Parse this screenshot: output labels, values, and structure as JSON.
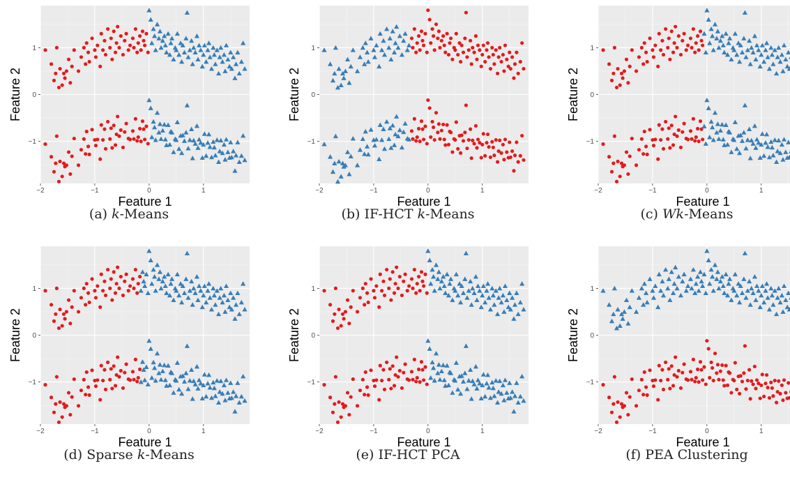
{
  "colors": {
    "cluster_red": "#e41a1c",
    "cluster_blue": "#377eb8",
    "panel_bg": "#ebebeb",
    "grid": "#ffffff"
  },
  "chart_data": [
    {
      "type": "scatter",
      "caption": "(a) k-Means",
      "caption_parts": {
        "prefix": "(a) ",
        "italic": "k",
        "suffix": "-Means"
      },
      "xlabel": "Feature 1",
      "ylabel": "Feature 2",
      "xlim": [
        -2.0,
        1.85
      ],
      "ylim": [
        -1.9,
        1.9
      ],
      "xticks": [
        -2,
        -1,
        0,
        1
      ],
      "yticks": [
        -1,
        0,
        1
      ],
      "tick_labels_x": [
        "−2",
        "−1",
        "0",
        "1"
      ],
      "tick_labels_y": [
        "−1",
        "0",
        "1"
      ],
      "assignment": "x_split",
      "split": 0.0,
      "left_shape": "circle",
      "left_color": "#e41a1c",
      "right_shape": "triangle",
      "right_color": "#377eb8"
    },
    {
      "type": "scatter",
      "caption": "(b) IF-HCT k-Means",
      "caption_parts": {
        "prefix": "(b) IF-HCT ",
        "italic": "k",
        "suffix": "-Means"
      },
      "xlabel": "Feature 1",
      "ylabel": "Feature 2",
      "xlim": [
        -2.0,
        1.85
      ],
      "ylim": [
        -1.9,
        1.9
      ],
      "xticks": [
        -2,
        -1,
        0,
        1
      ],
      "yticks": [
        -1,
        0,
        1
      ],
      "tick_labels_x": [
        "−2",
        "−1",
        "0",
        "1"
      ],
      "tick_labels_y": [
        "−1",
        "0",
        "1"
      ],
      "assignment": "x_split",
      "split": -0.3,
      "left_shape": "triangle",
      "left_color": "#377eb8",
      "right_shape": "circle",
      "right_color": "#e41a1c"
    },
    {
      "type": "scatter",
      "caption": "(c) Wk-Means",
      "caption_parts": {
        "prefix": "(c) ",
        "italic": "Wk",
        "suffix": "-Means"
      },
      "xlabel": "Feature 1",
      "ylabel": "Feature 2",
      "xlim": [
        -2.0,
        1.85
      ],
      "ylim": [
        -1.9,
        1.9
      ],
      "xticks": [
        -2,
        -1,
        0,
        1
      ],
      "yticks": [
        -1,
        0,
        1
      ],
      "tick_labels_x": [
        "−2",
        "−1",
        "0",
        "1"
      ],
      "tick_labels_y": [
        "−1",
        "0",
        "1"
      ],
      "assignment": "x_split",
      "split": -0.05,
      "left_shape": "circle",
      "left_color": "#e41a1c",
      "right_shape": "triangle",
      "right_color": "#377eb8"
    },
    {
      "type": "scatter",
      "caption": "(d) Sparse k-Means",
      "caption_parts": {
        "prefix": "(d) Sparse ",
        "italic": "k",
        "suffix": "-Means"
      },
      "xlabel": "Feature 1",
      "ylabel": "Feature 2",
      "xlim": [
        -2.0,
        1.85
      ],
      "ylim": [
        -1.9,
        1.9
      ],
      "xticks": [
        -2,
        -1,
        0,
        1
      ],
      "yticks": [
        -1,
        0,
        1
      ],
      "tick_labels_x": [
        "−2",
        "−1",
        "0",
        "1"
      ],
      "tick_labels_y": [
        "−1",
        "0",
        "1"
      ],
      "assignment": "x_split",
      "split": -0.15,
      "left_shape": "circle",
      "left_color": "#e41a1c",
      "right_shape": "triangle",
      "right_color": "#377eb8"
    },
    {
      "type": "scatter",
      "caption": "(e) IF-HCT PCA",
      "caption_parts": {
        "prefix": "(e) IF-HCT PCA",
        "italic": "",
        "suffix": ""
      },
      "xlabel": "Feature 1",
      "ylabel": "Feature 2",
      "xlim": [
        -2.0,
        1.85
      ],
      "ylim": [
        -1.9,
        1.9
      ],
      "xticks": [
        -2,
        -1,
        0,
        1
      ],
      "yticks": [
        -1,
        0,
        1
      ],
      "tick_labels_x": [
        "−2",
        "−1",
        "0",
        "1"
      ],
      "tick_labels_y": [
        "−1",
        "0",
        "1"
      ],
      "assignment": "x_split",
      "split": 0.0,
      "left_shape": "circle",
      "left_color": "#e41a1c",
      "right_shape": "triangle",
      "right_color": "#377eb8"
    },
    {
      "type": "scatter",
      "caption": "(f) PEA Clustering",
      "caption_parts": {
        "prefix": "(f) PEA Clustering",
        "italic": "",
        "suffix": ""
      },
      "xlabel": "Feature 1",
      "ylabel": "Feature 2",
      "xlim": [
        -2.0,
        1.85
      ],
      "ylim": [
        -1.9,
        1.9
      ],
      "xticks": [
        -2,
        -1,
        0,
        1
      ],
      "yticks": [
        -1,
        0,
        1
      ],
      "tick_labels_x": [
        "−2",
        "−1",
        "0",
        "1"
      ],
      "tick_labels_y": [
        "−1",
        "0",
        "1"
      ],
      "assignment": "y_split",
      "split": 0.0,
      "top_shape": "triangle",
      "top_color": "#377eb8",
      "bottom_shape": "circle",
      "bottom_color": "#e41a1c"
    }
  ],
  "points": {
    "x": [
      -1.91,
      -1.8,
      -1.75,
      -1.72,
      -1.7,
      -1.66,
      -1.64,
      -1.6,
      -1.57,
      -1.55,
      -1.52,
      -1.48,
      -1.45,
      -1.42,
      -1.38,
      -1.3,
      -1.25,
      -1.2,
      -1.17,
      -1.15,
      -1.12,
      -1.1,
      -1.05,
      -1.0,
      -0.98,
      -0.95,
      -0.9,
      -0.88,
      -0.85,
      -0.82,
      -0.8,
      -0.76,
      -0.72,
      -0.7,
      -0.68,
      -0.65,
      -0.62,
      -0.6,
      -0.58,
      -0.55,
      -0.52,
      -0.48,
      -0.45,
      -0.42,
      -0.38,
      -0.35,
      -0.3,
      -0.28,
      -0.25,
      -0.22,
      -0.2,
      -0.17,
      -0.15,
      -0.12,
      -0.1,
      -0.08,
      -0.05,
      -0.02,
      0.0,
      0.03,
      0.05,
      0.08,
      0.1,
      0.12,
      0.15,
      0.18,
      0.2,
      0.22,
      0.25,
      0.28,
      0.3,
      0.32,
      0.35,
      0.38,
      0.4,
      0.42,
      0.45,
      0.48,
      0.5,
      0.52,
      0.55,
      0.58,
      0.6,
      0.62,
      0.65,
      0.68,
      0.7,
      0.72,
      0.75,
      0.78,
      0.8,
      0.82,
      0.85,
      0.88,
      0.9,
      0.92,
      0.95,
      0.98,
      1.0,
      1.02,
      1.05,
      1.08,
      1.1,
      1.12,
      1.15,
      1.18,
      1.2,
      1.22,
      1.25,
      1.28,
      1.3,
      1.32,
      1.35,
      1.38,
      1.4,
      1.42,
      1.45,
      1.48,
      1.5,
      1.52,
      1.55,
      1.58,
      1.6,
      1.63,
      1.66,
      1.7,
      1.73,
      1.76
    ],
    "y": [
      0.95,
      0.65,
      0.3,
      0.45,
      1.0,
      0.15,
      0.55,
      0.2,
      0.45,
      0.35,
      0.5,
      0.75,
      0.25,
      0.6,
      0.95,
      0.5,
      0.8,
      1.0,
      0.65,
      1.1,
      0.9,
      0.7,
      1.2,
      0.95,
      0.8,
      1.05,
      0.6,
      1.3,
      0.95,
      1.15,
      0.85,
      1.4,
      1.0,
      1.2,
      0.75,
      1.35,
      0.9,
      1.1,
      1.45,
      1.0,
      1.25,
      0.85,
      1.15,
      1.3,
      0.95,
      1.05,
      1.2,
      1.0,
      1.4,
      0.9,
      1.1,
      1.25,
      0.95,
      1.35,
      1.15,
      1.05,
      1.3,
      0.9,
      1.8,
      1.6,
      1.1,
      1.4,
      1.25,
      0.95,
      1.5,
      1.2,
      1.35,
      1.0,
      1.15,
      1.25,
      1.05,
      0.9,
      1.3,
      0.85,
      1.1,
      1.2,
      0.75,
      1.0,
      0.95,
      1.3,
      0.85,
      1.1,
      0.7,
      1.05,
      0.9,
      1.2,
      1.75,
      0.8,
      0.95,
      1.15,
      0.65,
      1.0,
      0.9,
      1.25,
      0.75,
      1.05,
      0.95,
      0.6,
      0.85,
      1.05,
      0.7,
      0.95,
      1.1,
      0.8,
      0.55,
      1.0,
      0.85,
      0.65,
      0.95,
      0.45,
      0.8,
      1.0,
      0.7,
      0.85,
      0.5,
      1.05,
      0.75,
      0.6,
      0.9,
      0.55,
      0.8,
      0.35,
      0.65,
      0.9,
      0.45,
      0.7,
      1.1,
      0.55
    ]
  }
}
